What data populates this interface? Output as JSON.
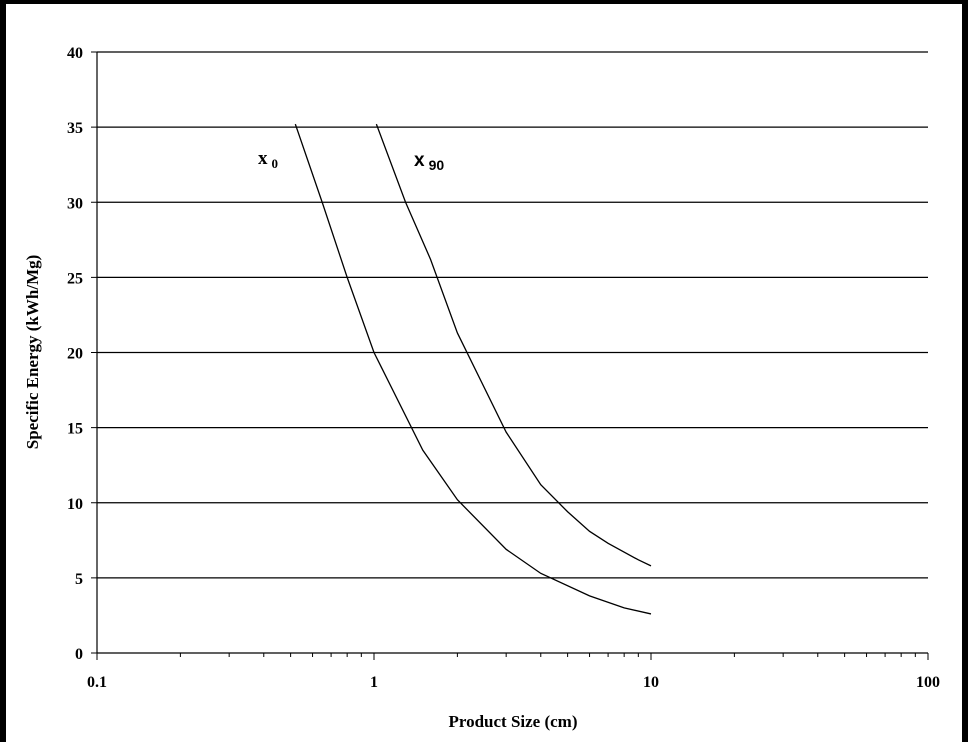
{
  "chart_data": {
    "type": "line",
    "xscale": "log",
    "xlim": [
      0.1,
      100
    ],
    "ylim": [
      0,
      40
    ],
    "xticks": [
      "0.1",
      "1",
      "10",
      "100"
    ],
    "yticks": [
      "0",
      "5",
      "10",
      "15",
      "20",
      "25",
      "30",
      "35",
      "40"
    ],
    "xlabel": "Product Size (cm)",
    "ylabel": "Specific Energy (kWh/Mg)",
    "grid": "horizontal",
    "legend": "none",
    "series": [
      {
        "name": "x 0",
        "label_main": "x",
        "label_sub": "0",
        "x": [
          0.52,
          0.65,
          0.8,
          1.0,
          1.5,
          2.0,
          3.0,
          4.0,
          6.0,
          8.0,
          10.0
        ],
        "y": [
          35.2,
          30.0,
          25.0,
          20.0,
          13.5,
          10.2,
          6.9,
          5.3,
          3.8,
          3.0,
          2.6
        ]
      },
      {
        "name": "x 90",
        "label_main": "x",
        "label_sub": "90",
        "x": [
          1.02,
          1.3,
          1.6,
          2.0,
          3.0,
          4.0,
          5.0,
          6.0,
          7.0,
          9.0,
          10.0
        ],
        "y": [
          35.2,
          30.0,
          26.2,
          21.3,
          14.7,
          11.2,
          9.4,
          8.1,
          7.3,
          6.2,
          5.8
        ]
      }
    ]
  }
}
